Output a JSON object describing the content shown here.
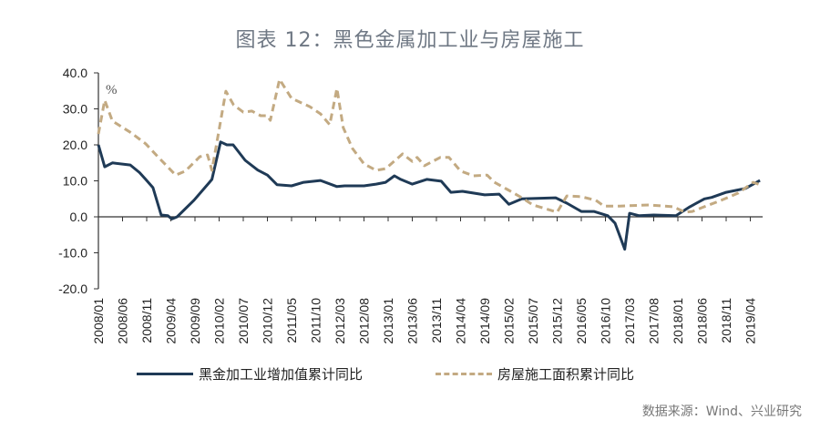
{
  "chart_data": {
    "type": "line",
    "title": "图表 12：黑色金属加工业与房屋施工",
    "ylabel": "%",
    "ylim": [
      -20,
      40
    ],
    "yticks": [
      "40.0",
      "30.0",
      "20.0",
      "10.0",
      "0.0",
      "-10.0",
      "-20.0"
    ],
    "ytick_values": [
      40,
      30,
      20,
      10,
      0,
      -10,
      -20
    ],
    "x_unit": "months since 2008/01",
    "xlim": [
      0,
      137
    ],
    "xtick_labels": [
      "2008/01",
      "2008/06",
      "2008/11",
      "2009/04",
      "2009/09",
      "2010/02",
      "2010/07",
      "2010/12",
      "2011/05",
      "2011/10",
      "2012/03",
      "2012/08",
      "2013/01",
      "2013/06",
      "2013/11",
      "2014/04",
      "2014/09",
      "2015/02",
      "2015/07",
      "2015/12",
      "2016/05",
      "2016/10",
      "2017/03",
      "2017/08",
      "2018/01",
      "2018/06",
      "2018/11",
      "2019/04"
    ],
    "xtick_months": [
      0,
      5,
      10,
      15,
      20,
      25,
      30,
      35,
      40,
      45,
      50,
      55,
      60,
      65,
      70,
      75,
      80,
      85,
      90,
      95,
      100,
      105,
      110,
      115,
      120,
      125,
      130,
      135
    ],
    "legend_position": "bottom",
    "series": [
      {
        "name": "黑金加工业增加值累计同比",
        "color": "#1f3a56",
        "style": "solid",
        "x": [
          0,
          1.3,
          2.9,
          6.6,
          8.5,
          9.8,
          11.3,
          13,
          14.4,
          15.2,
          16.3,
          19.8,
          23,
          23.5,
          25.3,
          26.6,
          27.9,
          30.4,
          33,
          35,
          37,
          40,
          42.5,
          46,
          49.4,
          51,
          55,
          57.5,
          59.5,
          61.3,
          62.6,
          65,
          68,
          71,
          73,
          75.4,
          80,
          83,
          85,
          87.7,
          94.7,
          97,
          100,
          102.6,
          105.5,
          107,
          109,
          110,
          112,
          115,
          119.6,
          122.5,
          125.5,
          127,
          130,
          134,
          137
        ],
        "values": [
          20,
          13.9,
          15,
          14.4,
          12.3,
          10.4,
          8.1,
          0.5,
          0.3,
          -0.6,
          0,
          4.6,
          9.6,
          10.4,
          20.8,
          20,
          20,
          15.7,
          13,
          11.6,
          8.9,
          8.6,
          9.6,
          10.1,
          8.4,
          8.6,
          8.6,
          9.1,
          9.6,
          11.4,
          10.4,
          9.1,
          10.4,
          9.9,
          6.8,
          7.1,
          6.1,
          6.3,
          3.5,
          5,
          5.3,
          3.8,
          1.5,
          1.5,
          0.3,
          -1.8,
          -9,
          1,
          0.3,
          0.5,
          0.3,
          2.8,
          5,
          5.4,
          6.8,
          7.9,
          10.1
        ]
      },
      {
        "name": "房屋施工面积累计同比",
        "color": "#c3aa82",
        "style": "dashed",
        "x": [
          0,
          1.3,
          2.9,
          6.6,
          9.8,
          12.3,
          16,
          18,
          21,
          22.6,
          23.5,
          26.4,
          28,
          30,
          31.8,
          33.6,
          35,
          35.6,
          37.5,
          40,
          43.8,
          46,
          47.9,
          49.4,
          50.7,
          52.6,
          55,
          57.5,
          59.5,
          63,
          65,
          66,
          67.5,
          70.8,
          72.6,
          75,
          77.7,
          80.5,
          82,
          84.7,
          87.7,
          90,
          95,
          97,
          100,
          103,
          104.7,
          108,
          114,
          119,
          121.5,
          123,
          125.5,
          129,
          132.5,
          135.6,
          137
        ],
        "values": [
          23,
          32.4,
          26.6,
          23.5,
          20.3,
          16.7,
          11.6,
          12.7,
          16.7,
          17.2,
          12.9,
          34.9,
          31.1,
          29.1,
          29.4,
          28.1,
          28.1,
          26.8,
          38.2,
          32.9,
          30.6,
          28.6,
          25.6,
          35.7,
          24.8,
          19,
          14.7,
          12.9,
          13.4,
          17.5,
          15.4,
          16.5,
          14.2,
          16.5,
          16.5,
          12.7,
          11.4,
          11.6,
          9.6,
          7.6,
          5.3,
          3.3,
          1.3,
          5.8,
          5.6,
          4.6,
          3,
          3,
          3.3,
          2.8,
          1.3,
          1.5,
          2.8,
          4.6,
          6.6,
          9.6,
          8.9
        ]
      }
    ]
  },
  "source": "数据来源：Wind、兴业研究"
}
